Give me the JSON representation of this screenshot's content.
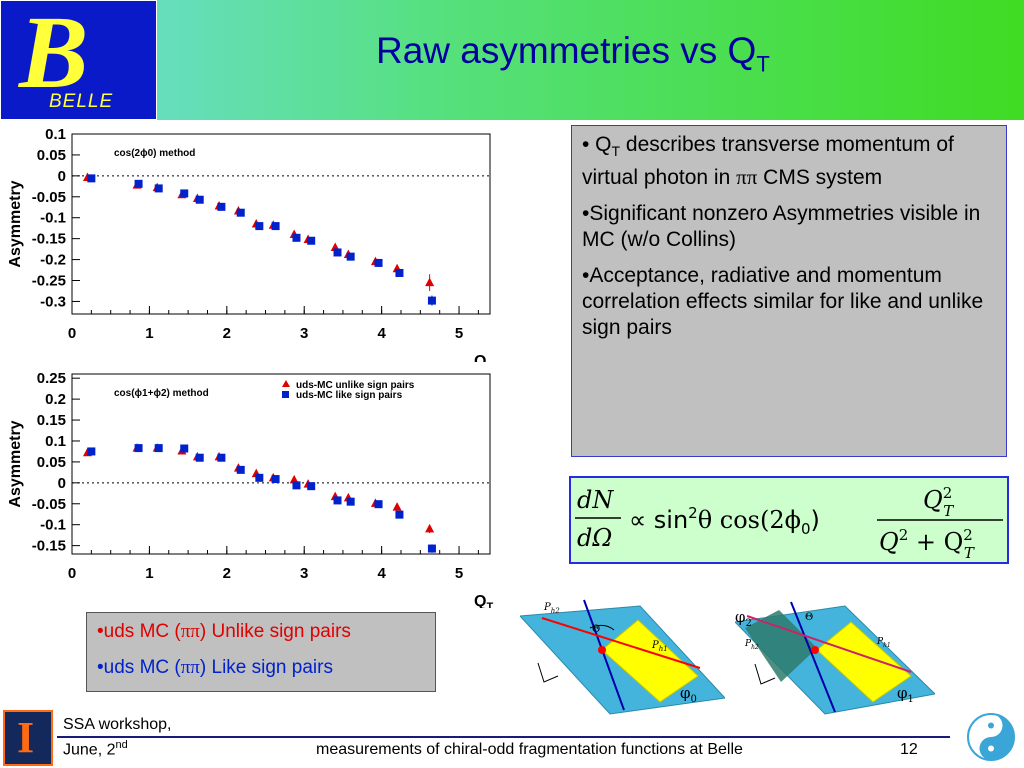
{
  "header": {
    "title_main": "Raw asymmetries vs Q",
    "title_sub": "T",
    "logo_letter": "B",
    "logo_text": "BELLE"
  },
  "colors": {
    "unlike": "#e00000",
    "like": "#0022cc"
  },
  "chart_data": [
    {
      "type": "scatter",
      "annotation": "cos(2ϕ0) method",
      "xlabel": "Q",
      "xlabel_sub": "T",
      "ylabel": "Asymmetry",
      "xlim": [
        0,
        5.4
      ],
      "ylim": [
        -0.33,
        0.1
      ],
      "xticks": [
        0,
        1,
        2,
        3,
        4,
        5
      ],
      "yticks": [
        0.1,
        0.05,
        0,
        -0.05,
        -0.1,
        -0.15,
        -0.2,
        -0.25,
        -0.3
      ],
      "ytick_labels": [
        "0.1",
        "0.05",
        "0",
        "-0.05",
        "-0.1",
        "-0.15",
        "-0.2",
        "-0.25",
        "-0.3"
      ],
      "series": [
        {
          "color": "#e00000",
          "marker": "triangle",
          "x": [
            0.2,
            0.84,
            1.1,
            1.42,
            1.62,
            1.9,
            2.15,
            2.38,
            2.6,
            2.87,
            3.05,
            3.4,
            3.57,
            3.92,
            4.2,
            4.62
          ],
          "y": [
            -0.004,
            -0.022,
            -0.028,
            -0.045,
            -0.054,
            -0.072,
            -0.084,
            -0.115,
            -0.118,
            -0.14,
            -0.152,
            -0.171,
            -0.188,
            -0.205,
            -0.222,
            -0.255
          ],
          "err": [
            0.004,
            0.005,
            0.004,
            0.004,
            0.004,
            0.004,
            0.004,
            0.005,
            0.005,
            0.005,
            0.005,
            0.006,
            0.006,
            0.006,
            0.007,
            0.02
          ]
        },
        {
          "color": "#0022cc",
          "marker": "square",
          "x": [
            0.25,
            0.86,
            1.12,
            1.45,
            1.65,
            1.93,
            2.18,
            2.42,
            2.63,
            2.9,
            3.09,
            3.43,
            3.6,
            3.96,
            4.23,
            4.65
          ],
          "y": [
            -0.006,
            -0.019,
            -0.03,
            -0.042,
            -0.057,
            -0.074,
            -0.088,
            -0.12,
            -0.12,
            -0.148,
            -0.155,
            -0.183,
            -0.193,
            -0.208,
            -0.232,
            -0.298
          ],
          "err": [
            0.004,
            0.005,
            0.004,
            0.004,
            0.004,
            0.004,
            0.004,
            0.005,
            0.005,
            0.005,
            0.005,
            0.006,
            0.006,
            0.006,
            0.007,
            0.012
          ]
        }
      ]
    },
    {
      "type": "scatter",
      "annotation": "cos(ϕ1+ϕ2) method",
      "xlabel": "Q",
      "xlabel_sub": "T",
      "ylabel": "Asymmetry",
      "xlim": [
        0,
        5.4
      ],
      "ylim": [
        -0.17,
        0.26
      ],
      "xticks": [
        0,
        1,
        2,
        3,
        4,
        5
      ],
      "yticks": [
        0.25,
        0.2,
        0.15,
        0.1,
        0.05,
        0,
        -0.05,
        -0.1,
        -0.15
      ],
      "ytick_labels": [
        "0.25",
        "0.2",
        "0.15",
        "0.1",
        "0.05",
        "0",
        "-0.05",
        "-0.1",
        "-0.15"
      ],
      "series": [
        {
          "name": "uds-MC unlike sign pairs",
          "color": "#e00000",
          "marker": "triangle",
          "x": [
            0.2,
            0.84,
            1.1,
            1.42,
            1.62,
            1.9,
            2.15,
            2.38,
            2.6,
            2.87,
            3.05,
            3.4,
            3.57,
            3.92,
            4.2,
            4.62
          ],
          "y": [
            0.072,
            0.083,
            0.083,
            0.076,
            0.062,
            0.062,
            0.035,
            0.022,
            0.012,
            0.007,
            -0.003,
            -0.033,
            -0.036,
            -0.049,
            -0.058,
            -0.11
          ],
          "err": [
            0.004,
            0.004,
            0.004,
            0.004,
            0.004,
            0.004,
            0.004,
            0.004,
            0.004,
            0.004,
            0.005,
            0.005,
            0.005,
            0.006,
            0.007,
            0.01
          ]
        },
        {
          "name": "uds-MC like sign pairs",
          "color": "#0022cc",
          "marker": "square",
          "x": [
            0.25,
            0.86,
            1.12,
            1.45,
            1.65,
            1.93,
            2.18,
            2.42,
            2.63,
            2.9,
            3.09,
            3.43,
            3.6,
            3.96,
            4.23,
            4.65
          ],
          "y": [
            0.075,
            0.083,
            0.083,
            0.082,
            0.06,
            0.06,
            0.031,
            0.012,
            0.009,
            -0.006,
            -0.008,
            -0.042,
            -0.045,
            -0.051,
            -0.076,
            -0.157
          ],
          "err": [
            0.004,
            0.004,
            0.004,
            0.004,
            0.004,
            0.004,
            0.004,
            0.004,
            0.004,
            0.004,
            0.005,
            0.005,
            0.005,
            0.006,
            0.007,
            0.01
          ]
        }
      ]
    }
  ],
  "bullets": [
    {
      "prefix": "• Q",
      "sub": "T",
      "text": " describes transverse momentum of virtual photon in ",
      "greek": "ππ",
      "suffix": " CMS system"
    },
    {
      "text": "•Significant nonzero Asymmetries visible in MC (w/o Collins)"
    },
    {
      "text": "•Acceptance, radiative and momentum correlation effects similar for like and unlike sign pairs"
    }
  ],
  "formula": {
    "lhs_num": "dN",
    "lhs_den": "dΩ",
    "middle": "∝ sin",
    "sq": "2",
    "theta": "θ cos(2ϕ",
    "phi_sub": "0",
    "close": ")",
    "rhs_num": "Q",
    "rhs_num_sup": "2",
    "rhs_num_sub": "T",
    "rhs_den_a": "Q",
    "rhs_den_a_sup": "2",
    "rhs_den_plus": " + Q",
    "rhs_den_b_sup": "2",
    "rhs_den_b_sub": "T"
  },
  "legend_box": {
    "unlike_prefix": "•uds MC (",
    "unlike_greek": "ππ",
    "unlike_suffix": ") Unlike sign pairs",
    "like_prefix": "•uds MC (",
    "like_greek": "ππ",
    "like_suffix": ")  Like sign pairs"
  },
  "diagrams": {
    "left": {
      "p_h2": "P",
      "p_h2_sub": "h2",
      "p_h1": "P",
      "p_h1_sub": "h1",
      "theta": "Θ",
      "phi": "φ",
      "phi_sub": "0"
    },
    "right": {
      "phi2": "φ",
      "phi2_sub": "2",
      "theta": "Θ",
      "p_h2": "P",
      "p_h2_sub": "h2",
      "p_h1": "P",
      "p_h1_sub": "h1",
      "phi1": "φ",
      "phi1_sub": "1"
    }
  },
  "footer": {
    "left_line1": "SSA workshop,",
    "left_line2": "June, 2",
    "left_sup": "nd",
    "center": "measurements of chiral-odd fragmentation functions at Belle",
    "page": "12",
    "illini": "I"
  }
}
